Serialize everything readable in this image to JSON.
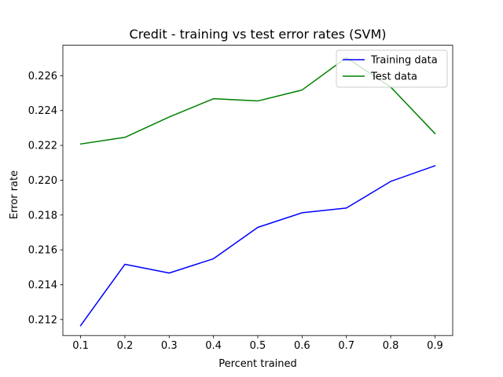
{
  "chart_data": {
    "type": "line",
    "title": "Credit - training vs test error rates (SVM)",
    "xlabel": "Percent trained",
    "ylabel": "Error rate",
    "x": [
      0.1,
      0.2,
      0.3,
      0.4,
      0.5,
      0.6,
      0.7,
      0.8,
      0.9
    ],
    "x_ticks": [
      0.1,
      0.2,
      0.3,
      0.4,
      0.5,
      0.6,
      0.7,
      0.8,
      0.9
    ],
    "y_ticks": [
      0.212,
      0.214,
      0.216,
      0.218,
      0.22,
      0.222,
      0.224,
      0.226
    ],
    "xlim": [
      0.06,
      0.94
    ],
    "ylim": [
      0.21108,
      0.22775
    ],
    "grid": false,
    "legend_position": "top-right",
    "series": [
      {
        "name": "Training data",
        "color": "#0000ff",
        "values": [
          0.21165,
          0.21517,
          0.21467,
          0.21549,
          0.21729,
          0.21813,
          0.2184,
          0.21993,
          0.22083
        ]
      },
      {
        "name": "Test data",
        "color": "#008000",
        "values": [
          0.22208,
          0.22246,
          0.22363,
          0.22468,
          0.22455,
          0.22518,
          0.22704,
          0.22535,
          0.22268
        ]
      }
    ]
  }
}
